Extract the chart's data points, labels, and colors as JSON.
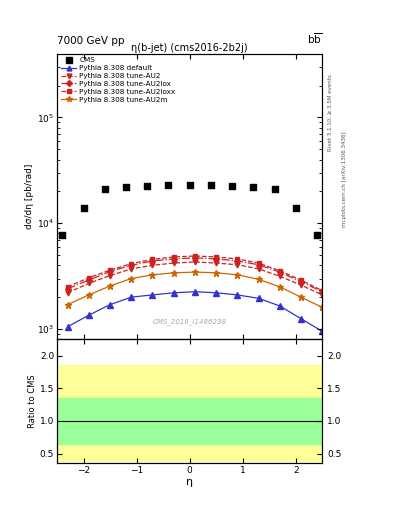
{
  "title_top": "7000 GeV pp",
  "title_right": "b$\\bar{b}$",
  "plot_title": "η(b-jet) (cms2016-2b2j)",
  "watermark": "CMS_2016_I1486238",
  "right_label_top": "Rivet 3.1.10, ≥ 3.5M events",
  "right_label_bot": "mcplots.cern.ch [arXiv:1306.3436]",
  "xlabel": "η",
  "ylabel": "dσ/dη [pb/rad]",
  "ylabel_ratio": "Ratio to CMS",
  "xlim": [
    -2.5,
    2.5
  ],
  "ylim_log": [
    800,
    400000
  ],
  "ylim_ratio": [
    0.35,
    2.25
  ],
  "ratio_yticks": [
    0.5,
    1.0,
    1.5,
    2.0
  ],
  "cms_eta": [
    -2.4,
    -2.0,
    -1.6,
    -1.2,
    -0.8,
    -0.4,
    0.0,
    0.4,
    0.8,
    1.2,
    1.6,
    2.0,
    2.4
  ],
  "cms_sigma": [
    7800,
    14000,
    21000,
    22000,
    22500,
    23000,
    23200,
    23000,
    22500,
    22000,
    21000,
    14000,
    7800
  ],
  "pythia_default_eta": [
    -2.3,
    -1.9,
    -1.5,
    -1.1,
    -0.7,
    -0.3,
    0.1,
    0.5,
    0.9,
    1.3,
    1.7,
    2.1,
    2.5
  ],
  "pythia_default_sigma": [
    1050,
    1350,
    1700,
    2000,
    2100,
    2200,
    2250,
    2200,
    2100,
    1950,
    1650,
    1250,
    950
  ],
  "pythia_au2_eta": [
    -2.3,
    -1.9,
    -1.5,
    -1.1,
    -0.7,
    -0.3,
    0.1,
    0.5,
    0.9,
    1.3,
    1.7,
    2.1,
    2.5
  ],
  "pythia_au2_sigma": [
    2200,
    2700,
    3200,
    3700,
    4000,
    4200,
    4300,
    4200,
    4050,
    3700,
    3150,
    2600,
    2100
  ],
  "pythia_au2lox_eta": [
    -2.3,
    -1.9,
    -1.5,
    -1.1,
    -0.7,
    -0.3,
    0.1,
    0.5,
    0.9,
    1.3,
    1.7,
    2.1,
    2.5
  ],
  "pythia_au2lox_sigma": [
    2400,
    2900,
    3500,
    4000,
    4400,
    4600,
    4700,
    4600,
    4400,
    4050,
    3450,
    2800,
    2250
  ],
  "pythia_au2loxx_eta": [
    -2.3,
    -1.9,
    -1.5,
    -1.1,
    -0.7,
    -0.3,
    0.1,
    0.5,
    0.9,
    1.3,
    1.7,
    2.1,
    2.5
  ],
  "pythia_au2loxx_sigma": [
    2500,
    3050,
    3600,
    4150,
    4550,
    4800,
    4900,
    4800,
    4600,
    4200,
    3550,
    2900,
    2300
  ],
  "pythia_au2m_eta": [
    -2.3,
    -1.9,
    -1.5,
    -1.1,
    -0.7,
    -0.3,
    0.1,
    0.5,
    0.9,
    1.3,
    1.7,
    2.1,
    2.5
  ],
  "pythia_au2m_sigma": [
    1700,
    2100,
    2550,
    3000,
    3250,
    3400,
    3450,
    3400,
    3250,
    2950,
    2500,
    2000,
    1600
  ],
  "color_default": "#3333cc",
  "color_au2": "#cc2222",
  "color_au2lox": "#cc2222",
  "color_au2loxx": "#cc2222",
  "color_au2m": "#cc6600",
  "green_band_lo": 0.65,
  "green_band_hi": 1.35,
  "yellow_band_lo": 0.38,
  "yellow_band_hi": 1.85
}
